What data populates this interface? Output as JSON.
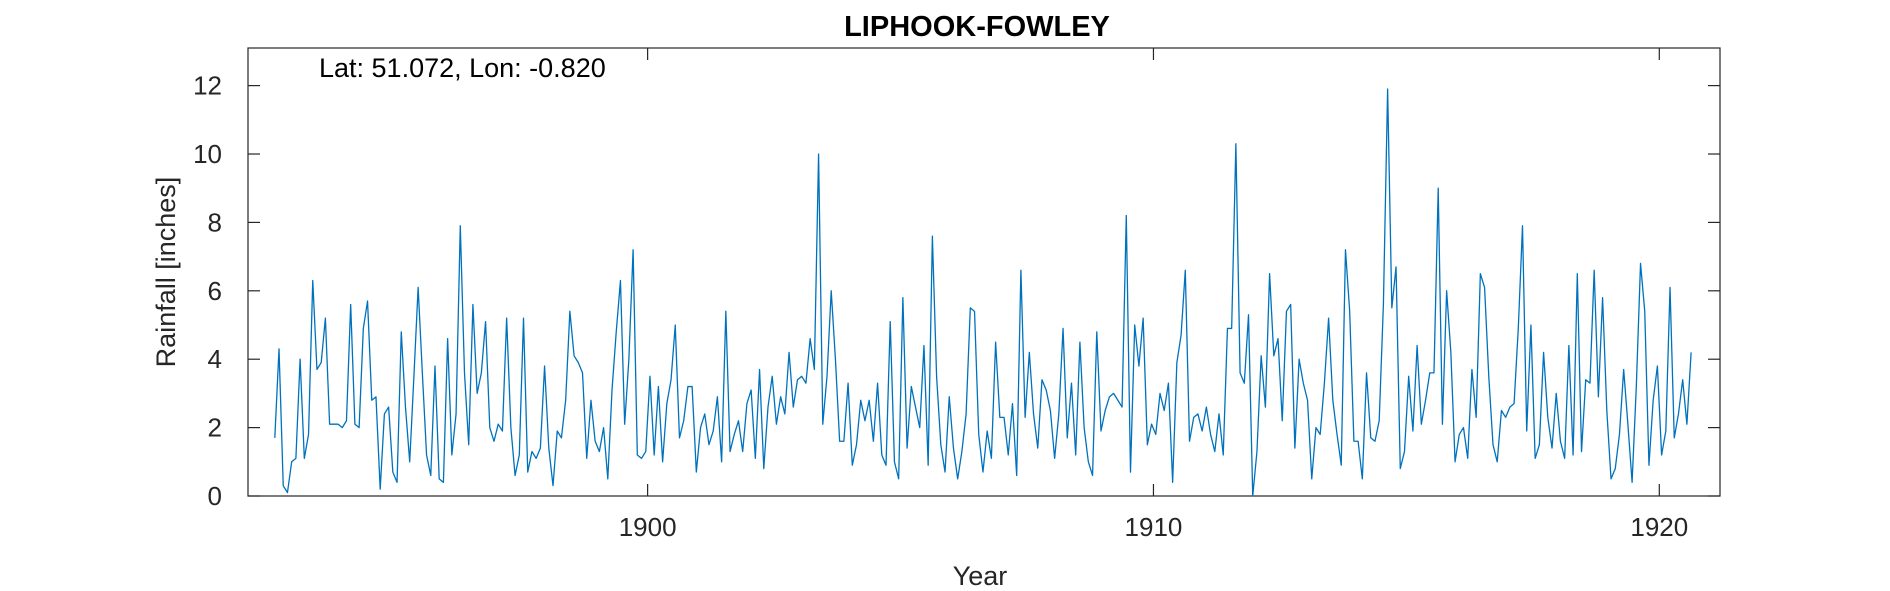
{
  "chart_data": {
    "type": "line",
    "title": "LIPHOOK-FOWLEY",
    "annotation": "Lat: 51.072, Lon: -0.820",
    "xlabel": "Year",
    "ylabel": "Rainfall [inches]",
    "xlim": [
      1892.1,
      1921.2
    ],
    "ylim": [
      0,
      13.1
    ],
    "xticks": [
      1900,
      1910,
      1920
    ],
    "yticks": [
      0,
      2,
      4,
      6,
      8,
      10,
      12
    ],
    "grid": false,
    "line_color": "#0072bd",
    "series": [
      {
        "name": "",
        "x_start": 1892.63,
        "x_step": 0.08333,
        "values": [
          1.7,
          4.3,
          0.3,
          0.1,
          1.0,
          1.1,
          4.0,
          1.1,
          1.8,
          6.3,
          3.7,
          3.9,
          5.2,
          2.1,
          2.1,
          2.1,
          2.0,
          2.2,
          5.6,
          2.1,
          2.0,
          4.9,
          5.7,
          2.8,
          2.9,
          0.2,
          2.4,
          2.6,
          0.7,
          0.4,
          4.8,
          2.6,
          1.0,
          3.5,
          6.1,
          3.6,
          1.2,
          0.6,
          3.8,
          0.5,
          0.4,
          4.6,
          1.2,
          2.4,
          7.9,
          3.6,
          1.5,
          5.6,
          3.0,
          3.6,
          5.1,
          2.0,
          1.6,
          2.1,
          1.9,
          5.2,
          2.0,
          0.6,
          1.2,
          5.2,
          0.7,
          1.3,
          1.1,
          1.4,
          3.8,
          1.4,
          0.3,
          1.9,
          1.7,
          2.8,
          5.4,
          4.1,
          3.9,
          3.6,
          1.1,
          2.8,
          1.6,
          1.3,
          2.0,
          0.5,
          3.1,
          4.8,
          6.3,
          2.1,
          4.0,
          7.2,
          1.2,
          1.1,
          1.3,
          3.5,
          1.2,
          3.2,
          1.0,
          2.7,
          3.4,
          5.0,
          1.7,
          2.2,
          3.2,
          3.2,
          0.7,
          2.0,
          2.4,
          1.5,
          1.9,
          2.9,
          1.0,
          5.4,
          1.3,
          1.8,
          2.2,
          1.3,
          2.7,
          3.1,
          1.1,
          3.7,
          0.8,
          2.6,
          3.5,
          2.1,
          2.9,
          2.4,
          4.2,
          2.6,
          3.4,
          3.5,
          3.3,
          4.6,
          3.7,
          10.0,
          2.1,
          3.5,
          6.0,
          4.0,
          1.6,
          1.6,
          3.3,
          0.9,
          1.5,
          2.8,
          2.2,
          2.8,
          1.6,
          3.3,
          1.2,
          0.9,
          5.1,
          1.0,
          0.5,
          5.8,
          1.4,
          3.2,
          2.6,
          2.0,
          4.4,
          0.9,
          7.6,
          3.5,
          1.5,
          0.7,
          2.9,
          1.4,
          0.5,
          1.3,
          2.4,
          5.5,
          5.4,
          1.8,
          0.7,
          1.9,
          1.1,
          4.5,
          2.3,
          2.3,
          1.2,
          2.7,
          0.6,
          6.6,
          2.3,
          4.2,
          2.4,
          1.4,
          3.4,
          3.1,
          2.5,
          1.1,
          2.4,
          4.9,
          1.7,
          3.3,
          1.2,
          4.5,
          2.0,
          1.0,
          0.6,
          4.8,
          1.9,
          2.5,
          2.9,
          3.0,
          2.8,
          2.6,
          8.2,
          0.7,
          5.0,
          3.8,
          5.2,
          1.5,
          2.1,
          1.8,
          3.0,
          2.5,
          3.3,
          0.4,
          3.9,
          4.7,
          6.6,
          1.6,
          2.3,
          2.4,
          1.9,
          2.6,
          1.8,
          1.3,
          2.4,
          1.2,
          4.9,
          4.9,
          10.3,
          3.6,
          3.3,
          5.3,
          0.0,
          1.3,
          4.1,
          2.6,
          6.5,
          4.1,
          4.6,
          2.2,
          5.4,
          5.6,
          1.4,
          4.0,
          3.3,
          2.8,
          0.5,
          2.0,
          1.8,
          3.3,
          5.2,
          2.8,
          1.8,
          0.9,
          7.2,
          5.4,
          1.6,
          1.6,
          0.5,
          3.6,
          1.7,
          1.6,
          2.2,
          5.6,
          11.9,
          5.5,
          6.7,
          0.8,
          1.3,
          3.5,
          1.9,
          4.4,
          2.1,
          2.8,
          3.6,
          3.6,
          9.0,
          2.1,
          6.0,
          4.2,
          1.0,
          1.8,
          2.0,
          1.1,
          3.7,
          2.3,
          6.5,
          6.1,
          3.5,
          1.5,
          1.0,
          2.5,
          2.3,
          2.6,
          2.7,
          4.9,
          7.9,
          1.9,
          5.0,
          1.1,
          1.5,
          4.2,
          2.3,
          1.4,
          3.0,
          1.6,
          1.1,
          4.4,
          1.2,
          6.5,
          1.3,
          3.4,
          3.3,
          6.6,
          2.9,
          5.8,
          2.5,
          0.5,
          0.8,
          1.8,
          3.7,
          2.1,
          0.4,
          3.2,
          6.8,
          5.4,
          0.9,
          2.8,
          3.8,
          1.2,
          1.9,
          6.1,
          1.7,
          2.4,
          3.4,
          2.1,
          4.2
        ]
      }
    ]
  }
}
